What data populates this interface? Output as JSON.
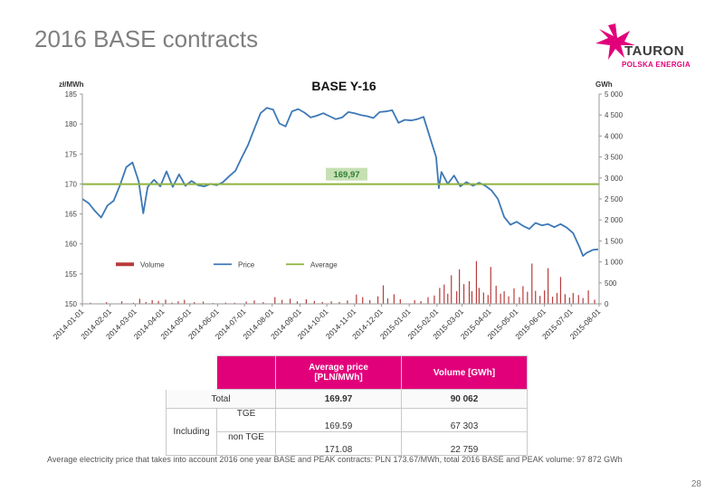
{
  "slide": {
    "title": "2016 BASE contracts",
    "page_number": "28",
    "footnote": "Average electricity price that takes into account 2016 one year BASE and PEAK contracts: PLN 173.67/MWh, total 2016 BASE and PEAK volume: 97 872 GWh"
  },
  "logo": {
    "word": "TAURON",
    "sub": "POLSKA ENERGIA",
    "color": "#e2007a"
  },
  "chart_data": {
    "type": "line",
    "title": "BASE   Y-16",
    "ylabel_left": "zł/MWh",
    "ylabel_right": "GWh",
    "ylim": [
      150,
      185
    ],
    "yticks": [
      "150",
      "155",
      "160",
      "165",
      "170",
      "175",
      "180",
      "185"
    ],
    "ylim_right": [
      0,
      5000
    ],
    "yticks_right": [
      "0",
      "500",
      "1 000",
      "1 500",
      "2 000",
      "2 500",
      "3 000",
      "3 500",
      "4 000",
      "4 500",
      "5 000"
    ],
    "x_ticks": [
      "2014-01-01",
      "2014-02-01",
      "2014-03-01",
      "2014-04-01",
      "2014-05-01",
      "2014-06-01",
      "2014-07-01",
      "2014-08-01",
      "2014-09-01",
      "2014-10-01",
      "2014-11-01",
      "2014-12-01",
      "2015-01-01",
      "2015-02-01",
      "2015-03-01",
      "2015-04-01",
      "2015-05-01",
      "2015-06-01",
      "2015-07-01",
      "2015-08-01"
    ],
    "average_value": 169.97,
    "average_label": "169,97",
    "legend": [
      "Volume",
      "Price",
      "Average"
    ],
    "legend_position": "bottom-left",
    "colors": {
      "price": "#3d78b6",
      "average": "#8fb33f",
      "volume": "#b83b3b",
      "avg_label_bg": "#c6e0b4",
      "avg_label_text": "#2e7d32"
    },
    "price_series": [
      [
        "2014-01-01",
        167.5
      ],
      [
        "2014-01-08",
        166.8
      ],
      [
        "2014-01-15",
        165.5
      ],
      [
        "2014-01-22",
        164.4
      ],
      [
        "2014-01-29",
        166.4
      ],
      [
        "2014-02-05",
        167.2
      ],
      [
        "2014-02-12",
        169.8
      ],
      [
        "2014-02-19",
        172.8
      ],
      [
        "2014-02-26",
        173.6
      ],
      [
        "2014-03-05",
        170.4
      ],
      [
        "2014-03-10",
        165.1
      ],
      [
        "2014-03-15",
        169.5
      ],
      [
        "2014-03-22",
        170.7
      ],
      [
        "2014-03-29",
        169.6
      ],
      [
        "2014-04-05",
        172.1
      ],
      [
        "2014-04-12",
        169.5
      ],
      [
        "2014-04-19",
        171.6
      ],
      [
        "2014-04-26",
        169.7
      ],
      [
        "2014-05-03",
        170.5
      ],
      [
        "2014-05-10",
        169.8
      ],
      [
        "2014-05-17",
        169.6
      ],
      [
        "2014-05-24",
        170.0
      ],
      [
        "2014-05-31",
        169.8
      ],
      [
        "2014-06-07",
        170.3
      ],
      [
        "2014-06-14",
        171.3
      ],
      [
        "2014-06-21",
        172.2
      ],
      [
        "2014-06-28",
        174.4
      ],
      [
        "2014-07-05",
        176.5
      ],
      [
        "2014-07-12",
        179.2
      ],
      [
        "2014-07-19",
        181.8
      ],
      [
        "2014-07-26",
        182.7
      ],
      [
        "2014-08-02",
        182.4
      ],
      [
        "2014-08-09",
        180.1
      ],
      [
        "2014-08-16",
        179.6
      ],
      [
        "2014-08-23",
        182.1
      ],
      [
        "2014-08-30",
        182.5
      ],
      [
        "2014-09-06",
        181.9
      ],
      [
        "2014-09-13",
        181.1
      ],
      [
        "2014-09-20",
        181.4
      ],
      [
        "2014-09-27",
        181.8
      ],
      [
        "2014-10-04",
        181.3
      ],
      [
        "2014-10-11",
        180.8
      ],
      [
        "2014-10-18",
        181.1
      ],
      [
        "2014-10-25",
        182.0
      ],
      [
        "2014-11-01",
        181.8
      ],
      [
        "2014-11-08",
        181.5
      ],
      [
        "2014-11-15",
        181.3
      ],
      [
        "2014-11-22",
        181.0
      ],
      [
        "2014-11-29",
        182.0
      ],
      [
        "2014-12-06",
        182.1
      ],
      [
        "2014-12-13",
        182.3
      ],
      [
        "2014-12-20",
        180.2
      ],
      [
        "2014-12-27",
        180.7
      ],
      [
        "2015-01-03",
        180.6
      ],
      [
        "2015-01-10",
        180.8
      ],
      [
        "2015-01-17",
        181.2
      ],
      [
        "2015-01-24",
        177.8
      ],
      [
        "2015-01-31",
        174.5
      ],
      [
        "2015-02-03",
        169.3
      ],
      [
        "2015-02-06",
        172.0
      ],
      [
        "2015-02-13",
        170.0
      ],
      [
        "2015-02-20",
        171.4
      ],
      [
        "2015-02-27",
        169.6
      ],
      [
        "2015-03-06",
        170.3
      ],
      [
        "2015-03-13",
        169.7
      ],
      [
        "2015-03-20",
        170.2
      ],
      [
        "2015-03-27",
        169.7
      ],
      [
        "2015-04-03",
        168.9
      ],
      [
        "2015-04-10",
        167.5
      ],
      [
        "2015-04-17",
        164.5
      ],
      [
        "2015-04-24",
        163.2
      ],
      [
        "2015-05-01",
        163.7
      ],
      [
        "2015-05-08",
        163.0
      ],
      [
        "2015-05-15",
        162.5
      ],
      [
        "2015-05-22",
        163.5
      ],
      [
        "2015-05-29",
        163.1
      ],
      [
        "2015-06-05",
        163.3
      ],
      [
        "2015-06-12",
        162.8
      ],
      [
        "2015-06-19",
        163.3
      ],
      [
        "2015-06-26",
        162.7
      ],
      [
        "2015-07-03",
        161.8
      ],
      [
        "2015-07-10",
        159.5
      ],
      [
        "2015-07-14",
        158.0
      ],
      [
        "2015-07-18",
        158.5
      ],
      [
        "2015-07-25",
        159.0
      ],
      [
        "2015-07-31",
        159.1
      ]
    ],
    "volume_series": [
      [
        "2014-01-10",
        25
      ],
      [
        "2014-01-28",
        40
      ],
      [
        "2014-02-14",
        60
      ],
      [
        "2014-02-27",
        25
      ],
      [
        "2014-03-06",
        120
      ],
      [
        "2014-03-13",
        45
      ],
      [
        "2014-03-20",
        90
      ],
      [
        "2014-03-27",
        70
      ],
      [
        "2014-04-04",
        100
      ],
      [
        "2014-04-11",
        30
      ],
      [
        "2014-04-18",
        60
      ],
      [
        "2014-04-25",
        95
      ],
      [
        "2014-05-06",
        40
      ],
      [
        "2014-05-16",
        55
      ],
      [
        "2014-05-27",
        20
      ],
      [
        "2014-06-10",
        30
      ],
      [
        "2014-06-20",
        25
      ],
      [
        "2014-07-03",
        55
      ],
      [
        "2014-07-12",
        80
      ],
      [
        "2014-07-22",
        40
      ],
      [
        "2014-08-04",
        160
      ],
      [
        "2014-08-12",
        95
      ],
      [
        "2014-08-21",
        120
      ],
      [
        "2014-08-29",
        60
      ],
      [
        "2014-09-08",
        110
      ],
      [
        "2014-09-17",
        70
      ],
      [
        "2014-09-26",
        45
      ],
      [
        "2014-10-06",
        60
      ],
      [
        "2014-10-15",
        45
      ],
      [
        "2014-10-24",
        80
      ],
      [
        "2014-11-03",
        220
      ],
      [
        "2014-11-10",
        160
      ],
      [
        "2014-11-18",
        90
      ],
      [
        "2014-11-27",
        180
      ],
      [
        "2014-12-03",
        440
      ],
      [
        "2014-12-08",
        130
      ],
      [
        "2014-12-15",
        230
      ],
      [
        "2014-12-22",
        110
      ],
      [
        "2015-01-07",
        90
      ],
      [
        "2015-01-14",
        65
      ],
      [
        "2015-01-22",
        160
      ],
      [
        "2015-01-29",
        200
      ],
      [
        "2015-02-04",
        380
      ],
      [
        "2015-02-09",
        460
      ],
      [
        "2015-02-13",
        240
      ],
      [
        "2015-02-17",
        680
      ],
      [
        "2015-02-23",
        300
      ],
      [
        "2015-02-26",
        820
      ],
      [
        "2015-03-03",
        470
      ],
      [
        "2015-03-09",
        540
      ],
      [
        "2015-03-12",
        300
      ],
      [
        "2015-03-17",
        1020
      ],
      [
        "2015-03-20",
        380
      ],
      [
        "2015-03-25",
        270
      ],
      [
        "2015-03-30",
        210
      ],
      [
        "2015-04-02",
        880
      ],
      [
        "2015-04-08",
        430
      ],
      [
        "2015-04-13",
        240
      ],
      [
        "2015-04-17",
        300
      ],
      [
        "2015-04-22",
        180
      ],
      [
        "2015-04-28",
        370
      ],
      [
        "2015-05-04",
        160
      ],
      [
        "2015-05-08",
        420
      ],
      [
        "2015-05-13",
        290
      ],
      [
        "2015-05-18",
        960
      ],
      [
        "2015-05-22",
        310
      ],
      [
        "2015-05-27",
        190
      ],
      [
        "2015-06-01",
        320
      ],
      [
        "2015-06-05",
        850
      ],
      [
        "2015-06-10",
        170
      ],
      [
        "2015-06-15",
        260
      ],
      [
        "2015-06-19",
        640
      ],
      [
        "2015-06-24",
        230
      ],
      [
        "2015-06-29",
        150
      ],
      [
        "2015-07-03",
        260
      ],
      [
        "2015-07-09",
        210
      ],
      [
        "2015-07-14",
        140
      ],
      [
        "2015-07-20",
        320
      ],
      [
        "2015-07-27",
        100
      ]
    ]
  },
  "table": {
    "headers": [
      "Average price\n[PLN/MWh]",
      "Volume [GWh]"
    ],
    "total_label": "Total",
    "including_label": "Including",
    "rows": [
      {
        "label": "Total",
        "price": "169.97",
        "volume": "90 062"
      },
      {
        "label": "TGE",
        "price": "169.59",
        "volume": "67 303"
      },
      {
        "label": "non TGE",
        "price": "171.08",
        "volume": "22 759"
      }
    ]
  }
}
